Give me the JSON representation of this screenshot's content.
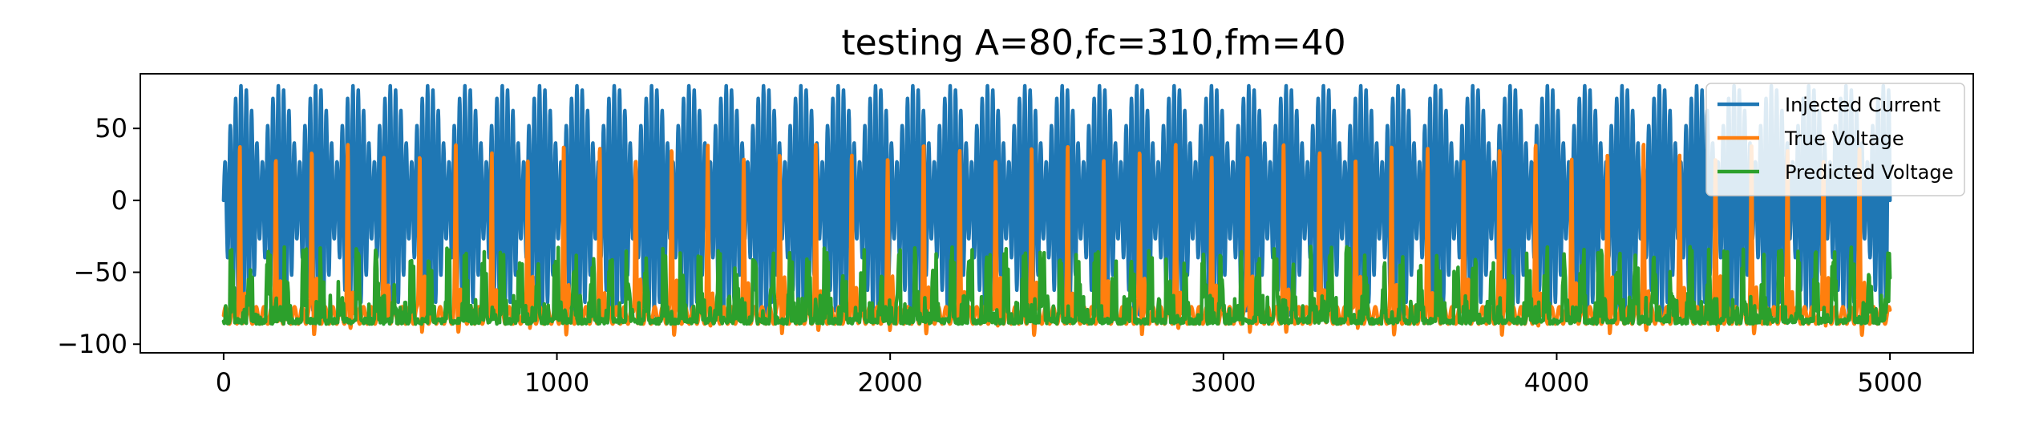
{
  "chart_data": {
    "type": "line",
    "title": "testing A=80,fc=310,fm=40",
    "xlabel": "",
    "ylabel": "",
    "xlim": [
      -250,
      5250
    ],
    "ylim": [
      -106,
      88
    ],
    "x_ticks": [
      0,
      1000,
      2000,
      3000,
      4000,
      5000
    ],
    "y_ticks": [
      50,
      0,
      -50,
      -100
    ],
    "x_tick_labels": [
      "0",
      "1000",
      "2000",
      "3000",
      "4000",
      "5000"
    ],
    "y_tick_labels": [
      "50",
      "0",
      "−50",
      "−100"
    ],
    "legend_position": "top-right",
    "grid": false,
    "series": [
      {
        "name": "Injected Current",
        "color": "#1f77b4",
        "description_model": "A*sin(2*pi*fc*t)*|sin(2*pi*fm*t)| style AM waveform, peaks near +/-80, ~6-7 carrier cycles per modulation lobe, x from 0 to 5000"
      },
      {
        "name": "True Voltage",
        "color": "#ff7f0e",
        "description_model": "spiking voltage, baseline near -75 to -90, spikes up to ~40, roughly 45 spikes across x 0..5000"
      },
      {
        "name": "Predicted Voltage",
        "color": "#2ca02c",
        "description_model": "noisy baseline near -80 to -90 with frequent bursts up to ~-30"
      }
    ],
    "generator": {
      "x_start": 0,
      "x_end": 5000,
      "current_amplitude": 80,
      "current_carrier_period": 16,
      "current_mod_period": 112,
      "voltage_spike_period": 108,
      "voltage_baseline": -80,
      "voltage_spike_peak": 38,
      "predicted_baseline": -84,
      "predicted_burst_peak": -32
    }
  }
}
